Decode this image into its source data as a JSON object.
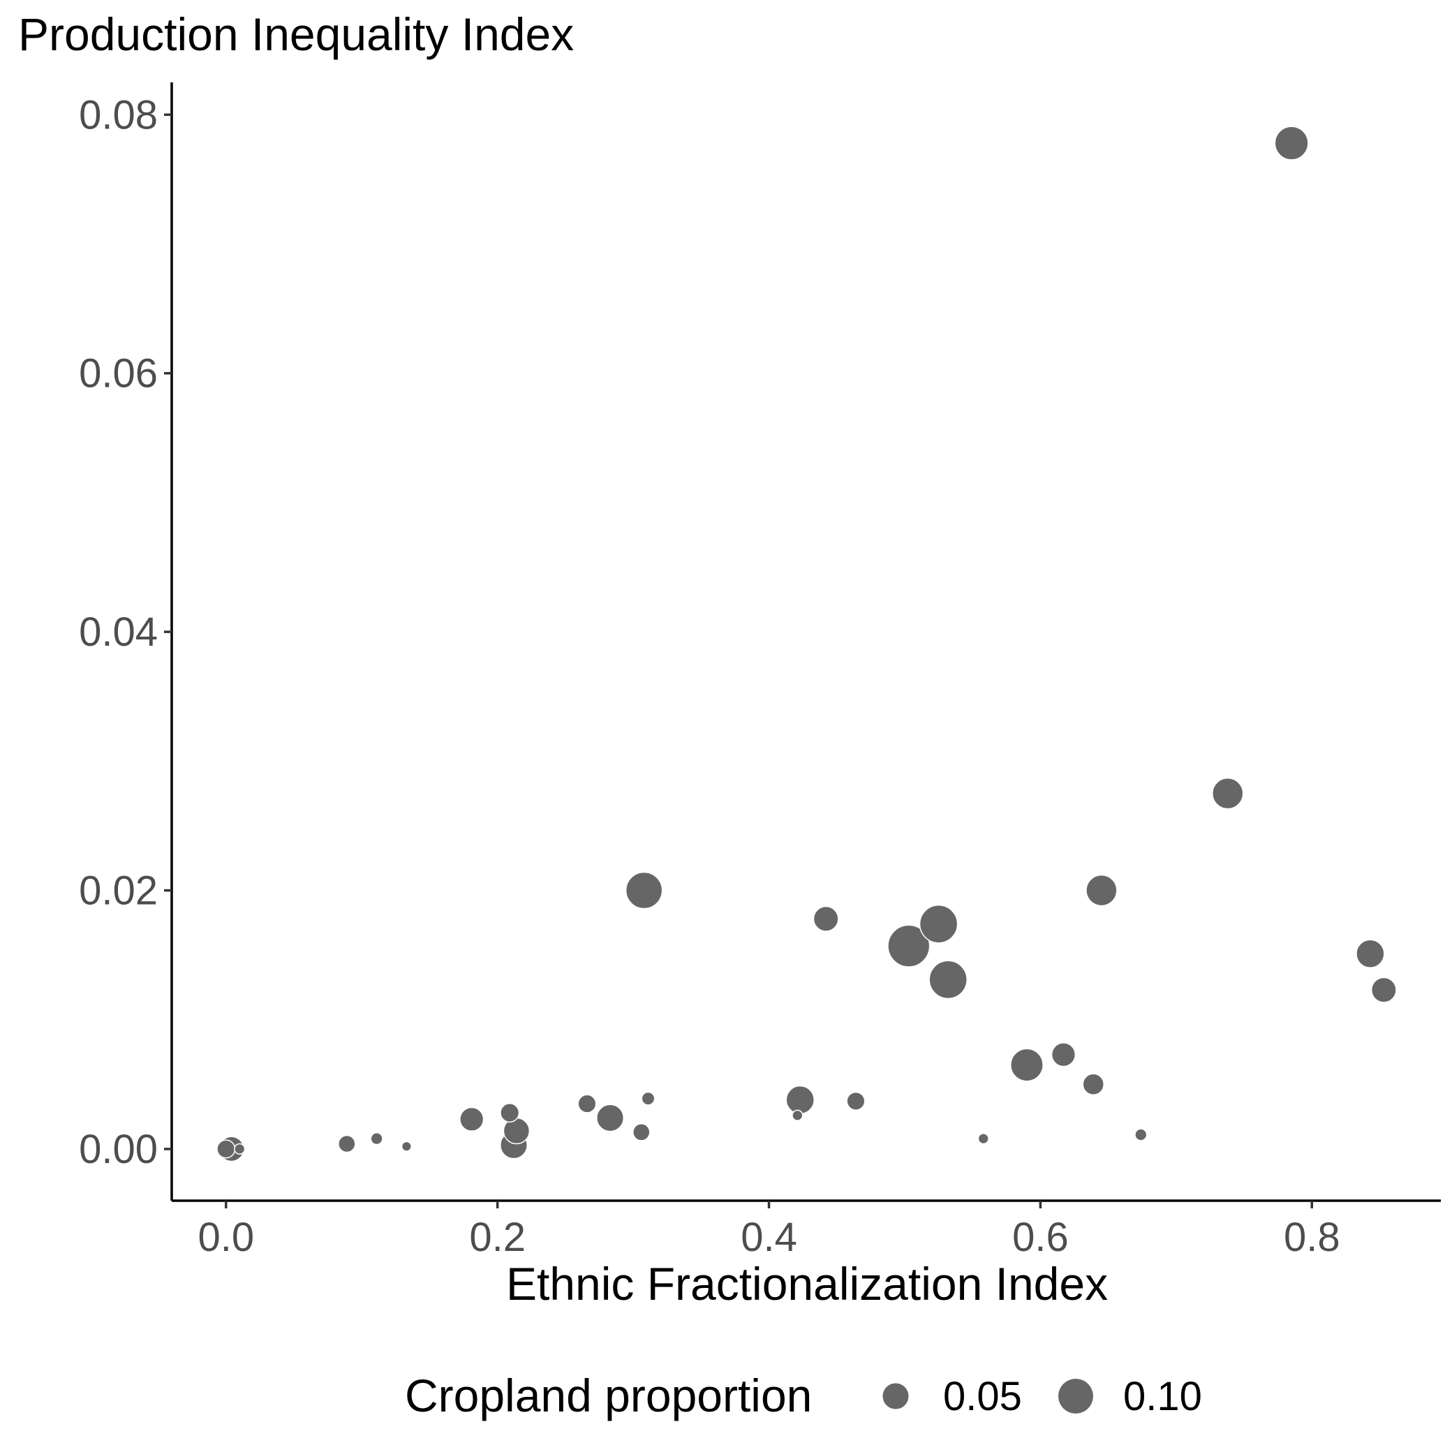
{
  "chart_data": {
    "type": "scatter",
    "title": "",
    "ylabel": "Production Inequality Index",
    "xlabel": "Ethnic Fractionalization Index",
    "xlim": [
      -0.04,
      0.895
    ],
    "ylim": [
      -0.004,
      0.0825
    ],
    "x_ticks": [
      0.0,
      0.2,
      0.4,
      0.6,
      0.8
    ],
    "x_tick_labels": [
      "0.0",
      "0.2",
      "0.4",
      "0.6",
      "0.8"
    ],
    "y_ticks": [
      0.0,
      0.02,
      0.04,
      0.06,
      0.08
    ],
    "y_tick_labels": [
      "0.00",
      "0.02",
      "0.04",
      "0.06",
      "0.08"
    ],
    "grid": false,
    "point_color": "#666666",
    "size_variable": "Cropland proportion",
    "legend": {
      "title": "Cropland proportion",
      "position": "bottom",
      "entries": [
        {
          "label": "0.05",
          "value": 0.05
        },
        {
          "label": "0.10",
          "value": 0.1
        }
      ]
    },
    "points": [
      {
        "x": 0.785,
        "y": 0.0778,
        "size": 0.09
      },
      {
        "x": 0.738,
        "y": 0.0275,
        "size": 0.075
      },
      {
        "x": 0.645,
        "y": 0.02,
        "size": 0.075
      },
      {
        "x": 0.308,
        "y": 0.02,
        "size": 0.11
      },
      {
        "x": 0.442,
        "y": 0.0178,
        "size": 0.045
      },
      {
        "x": 0.525,
        "y": 0.0174,
        "size": 0.12
      },
      {
        "x": 0.503,
        "y": 0.0157,
        "size": 0.15
      },
      {
        "x": 0.532,
        "y": 0.0131,
        "size": 0.12
      },
      {
        "x": 0.843,
        "y": 0.0151,
        "size": 0.06
      },
      {
        "x": 0.853,
        "y": 0.0123,
        "size": 0.045
      },
      {
        "x": 0.59,
        "y": 0.0065,
        "size": 0.085
      },
      {
        "x": 0.617,
        "y": 0.0073,
        "size": 0.04
      },
      {
        "x": 0.639,
        "y": 0.005,
        "size": 0.03
      },
      {
        "x": 0.423,
        "y": 0.0038,
        "size": 0.06
      },
      {
        "x": 0.464,
        "y": 0.0037,
        "size": 0.02
      },
      {
        "x": 0.421,
        "y": 0.0026,
        "size": 0.004
      },
      {
        "x": 0.311,
        "y": 0.0039,
        "size": 0.008
      },
      {
        "x": 0.283,
        "y": 0.0024,
        "size": 0.055
      },
      {
        "x": 0.266,
        "y": 0.0035,
        "size": 0.02
      },
      {
        "x": 0.306,
        "y": 0.0013,
        "size": 0.017
      },
      {
        "x": 0.209,
        "y": 0.0028,
        "size": 0.022
      },
      {
        "x": 0.214,
        "y": 0.0014,
        "size": 0.05
      },
      {
        "x": 0.212,
        "y": 0.0003,
        "size": 0.055
      },
      {
        "x": 0.181,
        "y": 0.0023,
        "size": 0.04
      },
      {
        "x": 0.089,
        "y": 0.0004,
        "size": 0.017
      },
      {
        "x": 0.111,
        "y": 0.0008,
        "size": 0.006
      },
      {
        "x": 0.133,
        "y": 0.0002,
        "size": 0.003
      },
      {
        "x": 0.558,
        "y": 0.0008,
        "size": 0.004
      },
      {
        "x": 0.674,
        "y": 0.0011,
        "size": 0.006
      },
      {
        "x": 0.0,
        "y": 0.0,
        "size": 0.02
      },
      {
        "x": 0.004,
        "y": 0.0,
        "size": 0.045
      },
      {
        "x": 0.01,
        "y": 0.0,
        "size": 0.004
      }
    ]
  }
}
